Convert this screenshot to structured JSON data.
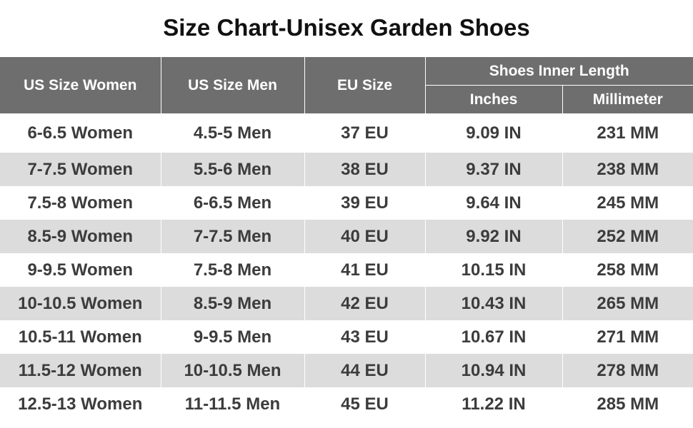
{
  "title": "Size Chart-Unisex Garden Shoes",
  "headers": {
    "us_women": "US Size Women",
    "us_men": "US Size Men",
    "eu": "EU Size",
    "inner_length": "Shoes Inner Length",
    "inches": "Inches",
    "millimeter": "Millimeter"
  },
  "rows": [
    [
      "6-6.5 Women",
      "4.5-5 Men",
      "37 EU",
      "9.09 IN",
      "231 MM"
    ],
    [
      "7-7.5 Women",
      "5.5-6 Men",
      "38 EU",
      "9.37 IN",
      "238 MM"
    ],
    [
      "7.5-8 Women",
      "6-6.5 Men",
      "39 EU",
      "9.64 IN",
      "245 MM"
    ],
    [
      "8.5-9 Women",
      "7-7.5 Men",
      "40 EU",
      "9.92 IN",
      "252 MM"
    ],
    [
      "9-9.5 Women",
      "7.5-8 Men",
      "41 EU",
      "10.15 IN",
      "258 MM"
    ],
    [
      "10-10.5 Women",
      "8.5-9 Men",
      "42 EU",
      "10.43 IN",
      "265 MM"
    ],
    [
      "10.5-11 Women",
      "9-9.5 Men",
      "43 EU",
      "10.67 IN",
      "271 MM"
    ],
    [
      "11.5-12 Women",
      "10-10.5 Men",
      "44 EU",
      "10.94 IN",
      "278 MM"
    ],
    [
      "12.5-13 Women",
      "11-11.5 Men",
      "45 EU",
      "11.22 IN",
      "285 MM"
    ]
  ],
  "colors": {
    "header_bg": "#6e6e6e",
    "alt_row_bg": "#dcdcdc",
    "text": "#3c3c3c"
  }
}
